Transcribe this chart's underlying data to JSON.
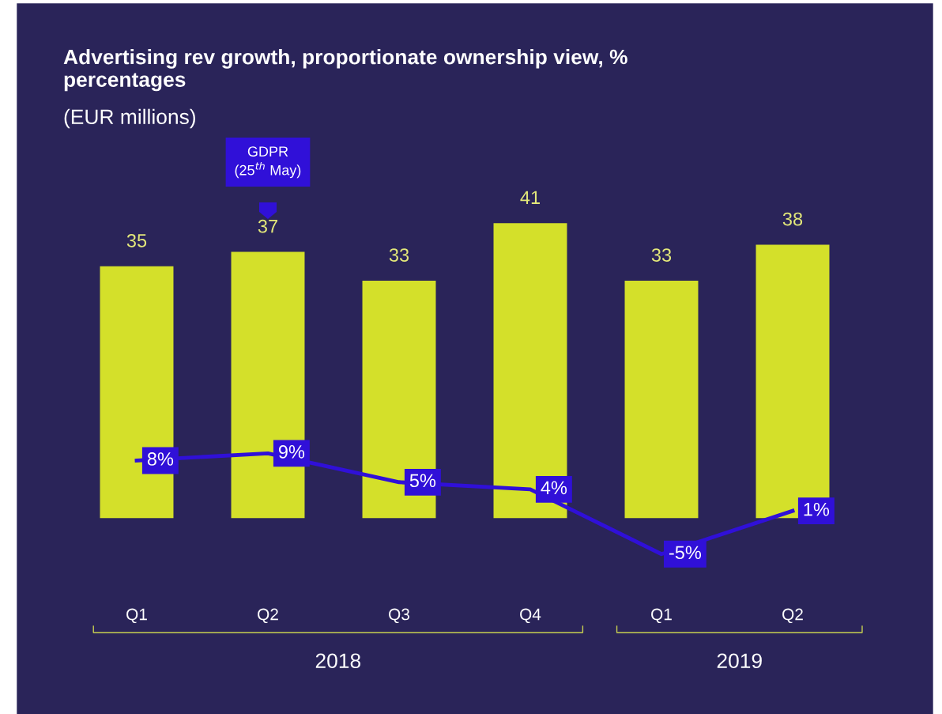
{
  "chart_data": {
    "type": "bar",
    "title": "Advertising rev growth, proportionate ownership view, %\npercentages",
    "subtitle": "(EUR millions)",
    "categories": [
      "Q1",
      "Q2",
      "Q3",
      "Q4",
      "Q1",
      "Q2"
    ],
    "series": [
      {
        "color": "#d4e02a",
        "values": [
          35,
          37,
          33,
          41,
          33,
          38
        ],
        "data_labels": true
      },
      {
        "type": "line",
        "color": "#3010d8",
        "values": [
          8,
          9,
          5,
          4,
          -5,
          1
        ],
        "value_labels": [
          "8%",
          "9%",
          "5%",
          "4%",
          "-5%",
          "1%"
        ]
      }
    ],
    "annotations": [
      "GDPR\n(25$^{th}$ May)",
      "2018",
      "2019"
    ],
    "tick_labels": "x",
    "grid": false,
    "marker": "none",
    "line_style": "solid"
  }
}
